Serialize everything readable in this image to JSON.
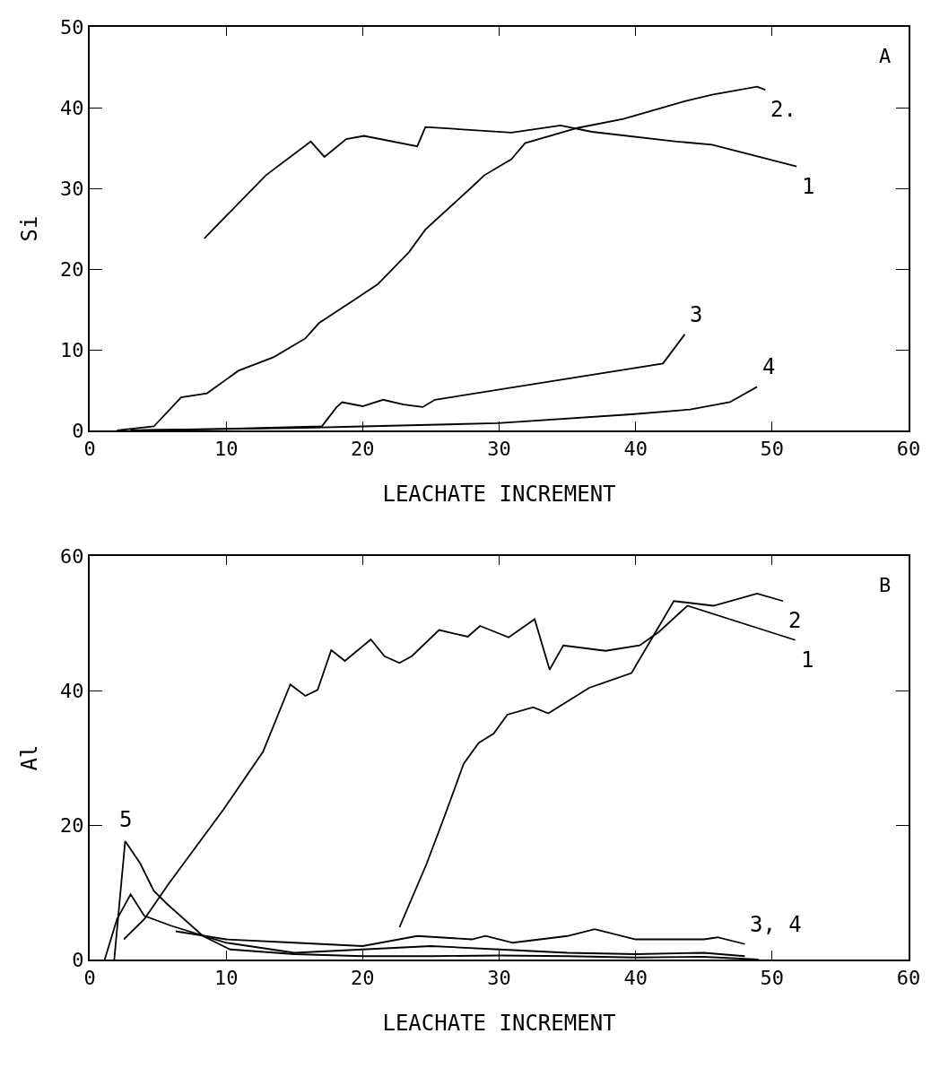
{
  "chart_data": [
    {
      "type": "line",
      "xlabel": "LEACHATE INCREMENT",
      "ylabel": "Si",
      "xlim": [
        0,
        60
      ],
      "xticks": [
        0,
        10,
        20,
        30,
        40,
        50,
        60
      ],
      "ylim": [
        0,
        50
      ],
      "yticks": [
        0,
        10,
        20,
        30,
        40,
        50
      ],
      "grid": false,
      "legend": false,
      "marker": "none",
      "line_style": "solid",
      "series": [
        {
          "name": "1",
          "color": "#000000",
          "x": [
            8.4,
            12.9,
            16.2,
            17.2,
            18.8,
            20.1,
            24,
            24.6,
            30.9,
            34.5,
            36.8,
            43,
            45.6,
            51.8
          ],
          "values": [
            23.8,
            31.6,
            35.8,
            33.9,
            36.1,
            36.5,
            35.2,
            37.6,
            36.9,
            37.8,
            37,
            35.8,
            35.4,
            32.7
          ]
        },
        {
          "name": "2.",
          "color": "#000000",
          "x": [
            2,
            4.7,
            6.7,
            8.6,
            10.9,
            13.5,
            15.8,
            16.8,
            19.4,
            21.1,
            23.4,
            24.6,
            27.9,
            28.9,
            30.9,
            31.9,
            35.8,
            39.1,
            43.6,
            45.6,
            48.9,
            49.5
          ],
          "values": [
            0,
            0.5,
            4.1,
            4.6,
            7.4,
            9.1,
            11.4,
            13.3,
            16.2,
            18.1,
            22.1,
            24.9,
            30,
            31.6,
            33.6,
            35.6,
            37.5,
            38.6,
            40.8,
            41.6,
            42.6,
            42.2
          ]
        },
        {
          "name": "3",
          "color": "#000000",
          "x": [
            3,
            10,
            17,
            18.1,
            18.5,
            20,
            21.5,
            23,
            24.4,
            25.3,
            42,
            43.6
          ],
          "values": [
            0,
            0.2,
            0.5,
            2.9,
            3.5,
            3,
            3.8,
            3.2,
            2.9,
            3.8,
            8.3,
            11.9
          ]
        },
        {
          "name": "4",
          "color": "#000000",
          "x": [
            3,
            15,
            20,
            29.9,
            39.7,
            44,
            46.9,
            48.9
          ],
          "values": [
            0,
            0.3,
            0.5,
            0.9,
            2,
            2.6,
            3.5,
            5.4
          ]
        }
      ],
      "annotations": [
        "A"
      ]
    },
    {
      "type": "line",
      "xlabel": "LEACHATE INCREMENT",
      "ylabel": "Al",
      "xlim": [
        0,
        60
      ],
      "xticks": [
        0,
        10,
        20,
        30,
        40,
        50,
        60
      ],
      "ylim": [
        0,
        60
      ],
      "yticks": [
        0,
        20,
        40,
        60
      ],
      "grid": false,
      "legend": false,
      "marker": "none",
      "line_style": "solid",
      "series": [
        {
          "name": "1",
          "color": "#000000",
          "x": [
            2.5,
            4,
            5.8,
            9.8,
            12.7,
            14.7,
            15.8,
            16.7,
            17.7,
            18.7,
            20.6,
            21.6,
            22.7,
            23.6,
            25.6,
            27.7,
            28.6,
            30.7,
            32.6,
            33.7,
            34.7,
            37.8,
            40.3,
            41.7,
            43.8,
            51.7
          ],
          "values": [
            3,
            6,
            11.3,
            22.3,
            30.9,
            40.9,
            39.2,
            40.1,
            46,
            44.4,
            47.6,
            45.1,
            44.1,
            45.1,
            49,
            48,
            49.6,
            47.9,
            50.6,
            43.1,
            46.7,
            45.9,
            46.7,
            48.7,
            52.6,
            47.5
          ]
        },
        {
          "name": "2",
          "color": "#000000",
          "x": [
            22.7,
            24.7,
            26,
            27.4,
            28.5,
            29.6,
            30.6,
            32.5,
            33.6,
            36.6,
            39.7,
            42.8,
            45.7,
            48.9,
            50.8
          ],
          "values": [
            4.8,
            14.3,
            21.3,
            29.1,
            32.2,
            33.6,
            36.4,
            37.5,
            36.6,
            40.4,
            42.6,
            53.3,
            52.6,
            54.4,
            53.3
          ]
        },
        {
          "name": "5",
          "color": "#000000",
          "x": [
            1.8,
            2.6,
            3.7,
            4.7,
            5.7,
            8.3,
            10.3,
            15,
            20,
            25,
            30,
            35,
            40,
            45,
            49
          ],
          "values": [
            0,
            17.6,
            14.3,
            10.2,
            8.2,
            3.5,
            1.5,
            0.8,
            0.5,
            0.5,
            0.6,
            0.5,
            0.3,
            0.4,
            0
          ]
        },
        {
          "name": "3, 4",
          "color": "#000000",
          "x": [
            6.3,
            10,
            15,
            20,
            24,
            28,
            29,
            31,
            35,
            37,
            40,
            45,
            46,
            48
          ],
          "values": [
            4.2,
            3,
            2.5,
            2,
            3.5,
            3,
            3.5,
            2.5,
            3.5,
            4.5,
            3,
            3,
            3.3,
            2.3
          ]
        },
        {
          "color": "#000000",
          "x": [
            1.1,
            2,
            3,
            4,
            6,
            10,
            15,
            20,
            25,
            30,
            35,
            40,
            45,
            48
          ],
          "values": [
            0,
            6,
            9.7,
            6.5,
            5,
            2.5,
            1,
            1.5,
            2,
            1.5,
            1,
            0.8,
            1,
            0.5
          ]
        }
      ],
      "annotations": [
        "B"
      ]
    }
  ]
}
